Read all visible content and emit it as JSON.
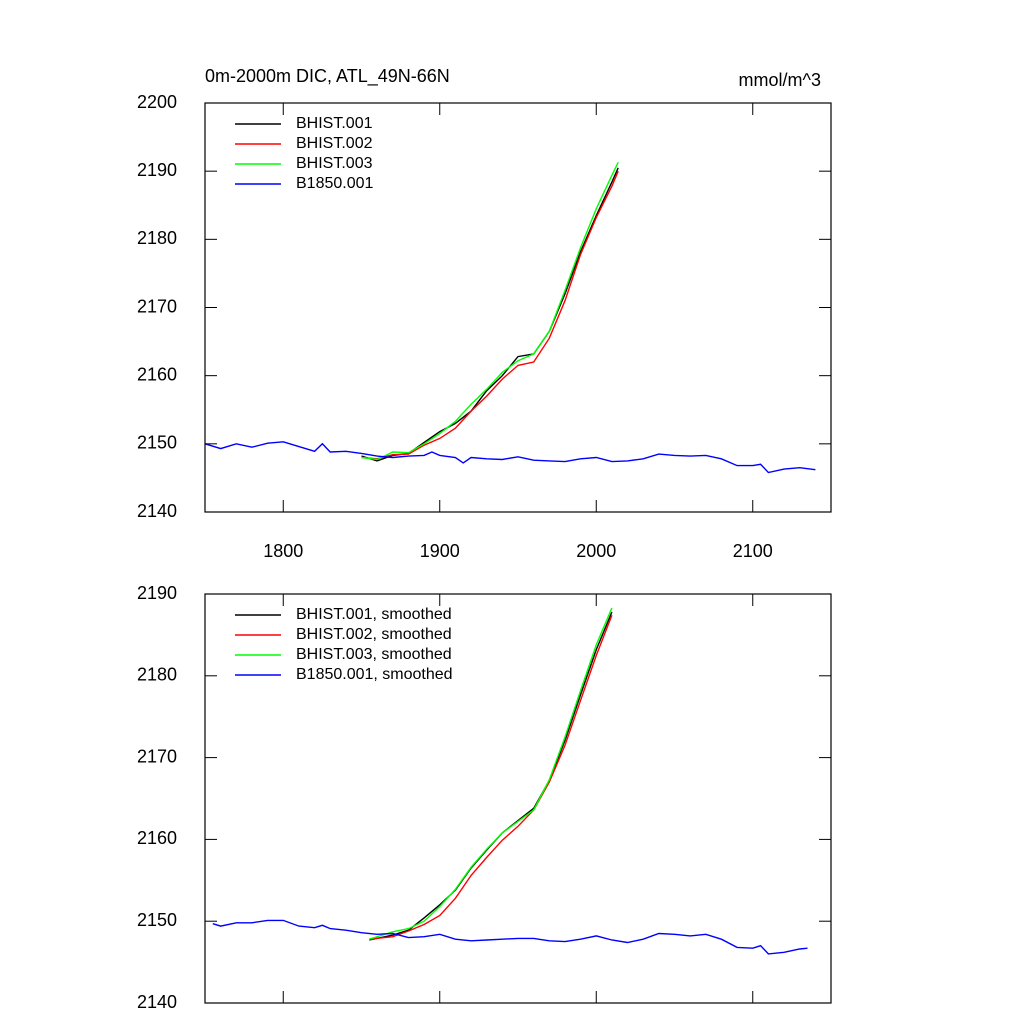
{
  "chart_data": [
    {
      "type": "line",
      "title": "0m-2000m DIC, ATL_49N-66N",
      "units": "mmol/m^3",
      "xlim": [
        1750,
        2150
      ],
      "ylim": [
        2140,
        2200
      ],
      "xticks": [
        1800,
        1900,
        2000,
        2100
      ],
      "yticks": [
        2140,
        2150,
        2160,
        2170,
        2180,
        2190,
        2200
      ],
      "xtick_labels": true,
      "legend": "top-left",
      "series": [
        {
          "name": "BHIST.001",
          "color": "#000000",
          "x": [
            1850,
            1860,
            1870,
            1880,
            1890,
            1900,
            1910,
            1920,
            1930,
            1940,
            1950,
            1960,
            1970,
            1980,
            1990,
            2000,
            2010,
            2014
          ],
          "values": [
            2148.2,
            2147.5,
            2148.3,
            2148.6,
            2150.2,
            2151.8,
            2153.0,
            2154.8,
            2157.8,
            2160.0,
            2162.8,
            2163.2,
            2166.5,
            2172.0,
            2178.2,
            2183.5,
            2188.4,
            2190.5
          ]
        },
        {
          "name": "BHIST.002",
          "color": "#ff0000",
          "x": [
            1850,
            1860,
            1870,
            1880,
            1890,
            1900,
            1910,
            1920,
            1930,
            1940,
            1950,
            1960,
            1970,
            1980,
            1990,
            2000,
            2010,
            2014
          ],
          "values": [
            2148.0,
            2147.8,
            2148.4,
            2148.5,
            2149.8,
            2150.8,
            2152.3,
            2154.8,
            2157.0,
            2159.5,
            2161.5,
            2162.0,
            2165.5,
            2171.0,
            2177.8,
            2183.2,
            2187.8,
            2190.0
          ]
        },
        {
          "name": "BHIST.003",
          "color": "#00ff00",
          "x": [
            1850,
            1860,
            1870,
            1880,
            1890,
            1900,
            1910,
            1920,
            1930,
            1940,
            1950,
            1960,
            1970,
            1980,
            1990,
            2000,
            2010,
            2014
          ],
          "values": [
            2148.0,
            2147.7,
            2148.8,
            2148.7,
            2150.0,
            2151.5,
            2153.3,
            2155.8,
            2158.0,
            2160.5,
            2162.2,
            2163.2,
            2166.5,
            2172.5,
            2178.8,
            2184.5,
            2189.4,
            2191.3
          ]
        },
        {
          "name": "B1850.001",
          "color": "#0000ff",
          "x": [
            1750,
            1760,
            1770,
            1780,
            1790,
            1800,
            1810,
            1820,
            1825,
            1830,
            1840,
            1850,
            1860,
            1870,
            1880,
            1890,
            1895,
            1900,
            1910,
            1915,
            1920,
            1930,
            1940,
            1950,
            1960,
            1970,
            1980,
            1990,
            2000,
            2010,
            2020,
            2030,
            2040,
            2050,
            2060,
            2070,
            2080,
            2090,
            2100,
            2105,
            2110,
            2120,
            2130,
            2140
          ],
          "values": [
            2150.0,
            2149.3,
            2150.0,
            2149.5,
            2150.1,
            2150.3,
            2149.6,
            2148.9,
            2150.0,
            2148.8,
            2148.9,
            2148.6,
            2148.2,
            2148.0,
            2148.2,
            2148.3,
            2148.8,
            2148.3,
            2148.0,
            2147.2,
            2148.0,
            2147.8,
            2147.7,
            2148.1,
            2147.6,
            2147.5,
            2147.4,
            2147.8,
            2148.0,
            2147.4,
            2147.5,
            2147.8,
            2148.5,
            2148.3,
            2148.2,
            2148.3,
            2147.8,
            2146.8,
            2146.8,
            2147.0,
            2145.8,
            2146.3,
            2146.5,
            2146.2
          ]
        }
      ]
    },
    {
      "type": "line",
      "xlim": [
        1750,
        2150
      ],
      "ylim": [
        2140,
        2190
      ],
      "xticks": [
        1800,
        1900,
        2000,
        2100
      ],
      "yticks": [
        2140,
        2150,
        2160,
        2170,
        2180,
        2190
      ],
      "xtick_labels": false,
      "legend": "top-left",
      "series": [
        {
          "name": "BHIST.001, smoothed",
          "color": "#000000",
          "x": [
            1855,
            1870,
            1880,
            1890,
            1900,
            1910,
            1920,
            1930,
            1940,
            1950,
            1960,
            1970,
            1980,
            1990,
            2000,
            2010
          ],
          "values": [
            2147.7,
            2148.3,
            2148.9,
            2150.4,
            2152.0,
            2153.8,
            2156.5,
            2158.7,
            2160.8,
            2162.3,
            2163.8,
            2167.2,
            2172.1,
            2177.7,
            2183.2,
            2187.8
          ]
        },
        {
          "name": "BHIST.002, smoothed",
          "color": "#ff0000",
          "x": [
            1855,
            1870,
            1880,
            1890,
            1900,
            1910,
            1920,
            1930,
            1940,
            1950,
            1960,
            1970,
            1980,
            1990,
            2000,
            2010
          ],
          "values": [
            2147.8,
            2148.1,
            2148.8,
            2149.6,
            2150.7,
            2152.8,
            2155.6,
            2157.8,
            2159.9,
            2161.6,
            2163.6,
            2167.0,
            2171.5,
            2177.0,
            2182.5,
            2187.4
          ]
        },
        {
          "name": "BHIST.003, smoothed",
          "color": "#00ff00",
          "x": [
            1855,
            1870,
            1880,
            1890,
            1900,
            1910,
            1920,
            1930,
            1940,
            1950,
            1960,
            1970,
            1980,
            1990,
            2000,
            2010
          ],
          "values": [
            2147.8,
            2148.7,
            2149.1,
            2150.0,
            2151.8,
            2153.9,
            2156.6,
            2158.8,
            2160.8,
            2162.2,
            2163.6,
            2167.3,
            2172.5,
            2178.2,
            2183.8,
            2188.3
          ]
        },
        {
          "name": "B1850.001, smoothed",
          "color": "#0000ff",
          "x": [
            1755,
            1760,
            1770,
            1780,
            1790,
            1800,
            1810,
            1820,
            1825,
            1830,
            1840,
            1850,
            1860,
            1870,
            1880,
            1890,
            1900,
            1910,
            1920,
            1930,
            1940,
            1950,
            1960,
            1970,
            1980,
            1990,
            2000,
            2010,
            2020,
            2030,
            2040,
            2050,
            2060,
            2070,
            2080,
            2090,
            2100,
            2105,
            2110,
            2120,
            2130,
            2135
          ],
          "values": [
            2149.7,
            2149.4,
            2149.8,
            2149.8,
            2150.1,
            2150.1,
            2149.4,
            2149.2,
            2149.5,
            2149.1,
            2148.9,
            2148.6,
            2148.4,
            2148.5,
            2148.0,
            2148.1,
            2148.4,
            2147.8,
            2147.6,
            2147.7,
            2147.8,
            2147.9,
            2147.9,
            2147.6,
            2147.5,
            2147.8,
            2148.2,
            2147.7,
            2147.4,
            2147.8,
            2148.5,
            2148.4,
            2148.2,
            2148.4,
            2147.8,
            2146.8,
            2146.7,
            2147.0,
            2146.0,
            2146.2,
            2146.6,
            2146.7
          ]
        }
      ]
    }
  ]
}
